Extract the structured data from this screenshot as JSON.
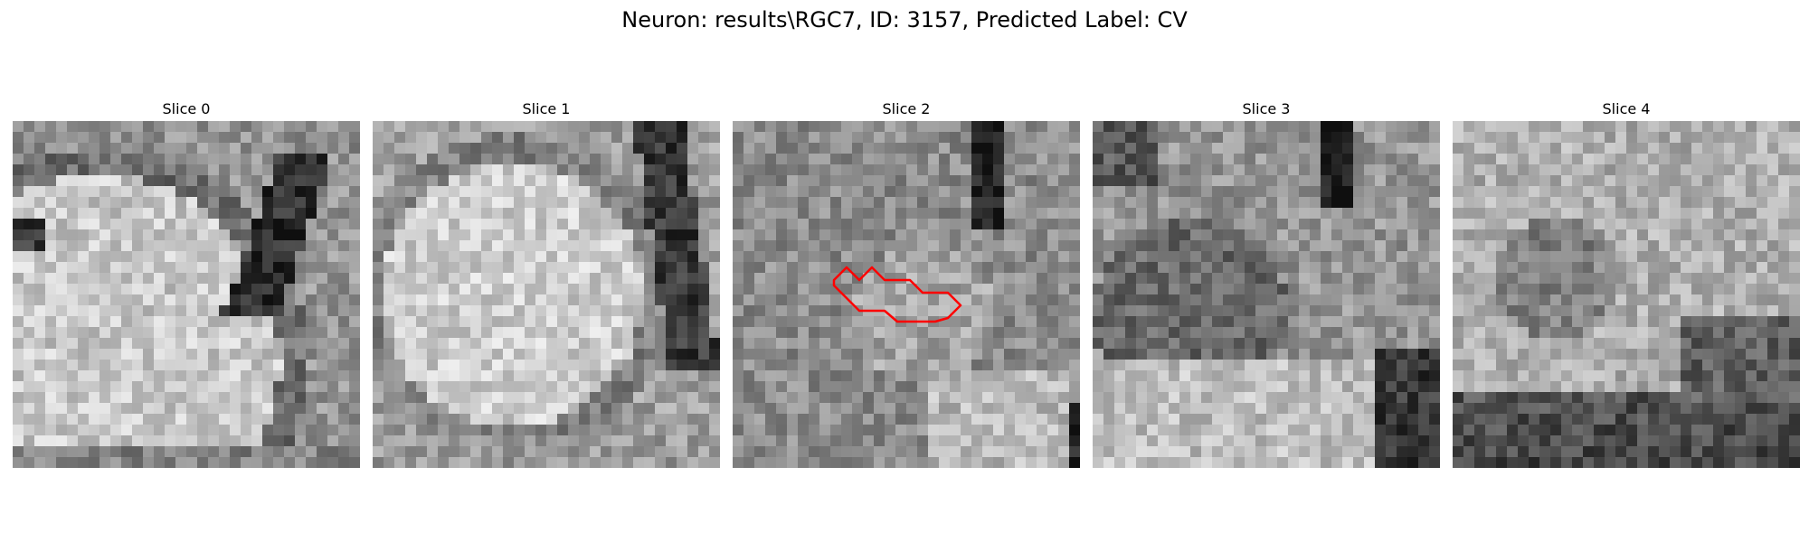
{
  "figure": {
    "suptitle": "Neuron: results\\RGC7, ID: 3157, Predicted Label: CV"
  },
  "panels": [
    {
      "title": "Slice 0"
    },
    {
      "title": "Slice 1"
    },
    {
      "title": "Slice 2"
    },
    {
      "title": "Slice 3"
    },
    {
      "title": "Slice 4"
    }
  ],
  "colors": {
    "contour": "#ff0000",
    "background": "#ffffff"
  }
}
